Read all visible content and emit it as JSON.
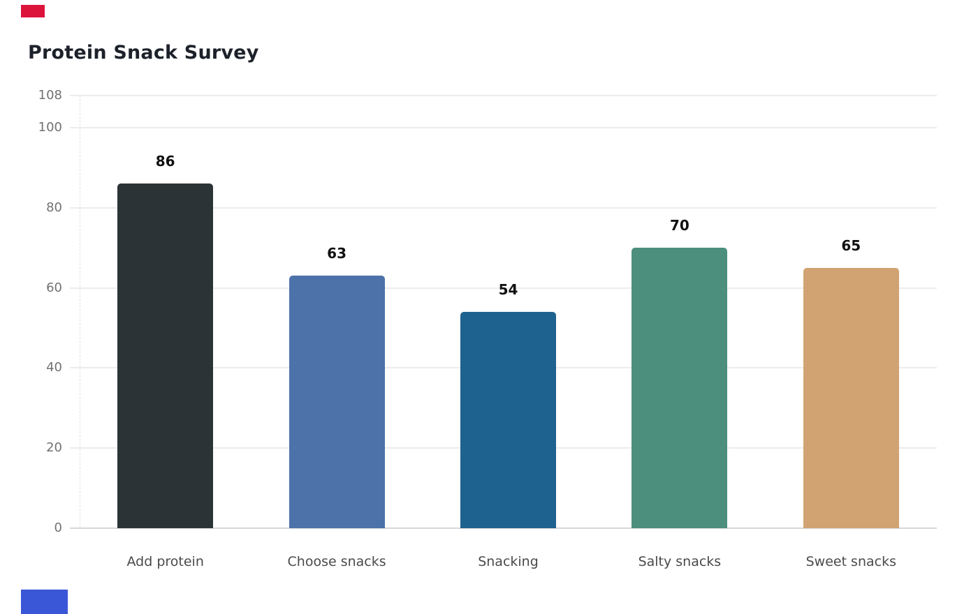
{
  "page": {
    "background": "#ffffff"
  },
  "decorations": {
    "top_left_block": {
      "color": "#dc143c"
    },
    "bottom_left_block": {
      "color": "#3a57d7"
    }
  },
  "chart_data": {
    "type": "bar",
    "title": "Protein Snack Survey",
    "categories": [
      "Add protein",
      "Choose snacks",
      "Snacking",
      "Salty snacks",
      "Sweet snacks"
    ],
    "values": [
      86,
      63,
      54,
      70,
      65
    ],
    "value_labels": [
      "86",
      "63",
      "54",
      "70",
      "65"
    ],
    "bar_colors": [
      "#2c3336",
      "#4c72a9",
      "#1e6290",
      "#4c8f7d",
      "#d1a373"
    ],
    "y_ticks": [
      0,
      20,
      40,
      60,
      80,
      100,
      108
    ],
    "ylim": [
      0,
      108
    ],
    "xlabel": "",
    "ylabel": "",
    "grid": true,
    "legend_position": "none",
    "style_colors": {
      "title_text": "#1d222a",
      "tick_text": "#717171",
      "category_text": "#4a4a4a",
      "value_label_text": "#111111",
      "gridline": "#ececec",
      "baseline": "#d7d7d7",
      "axis_dashed_line": "#dfdfdf"
    }
  }
}
